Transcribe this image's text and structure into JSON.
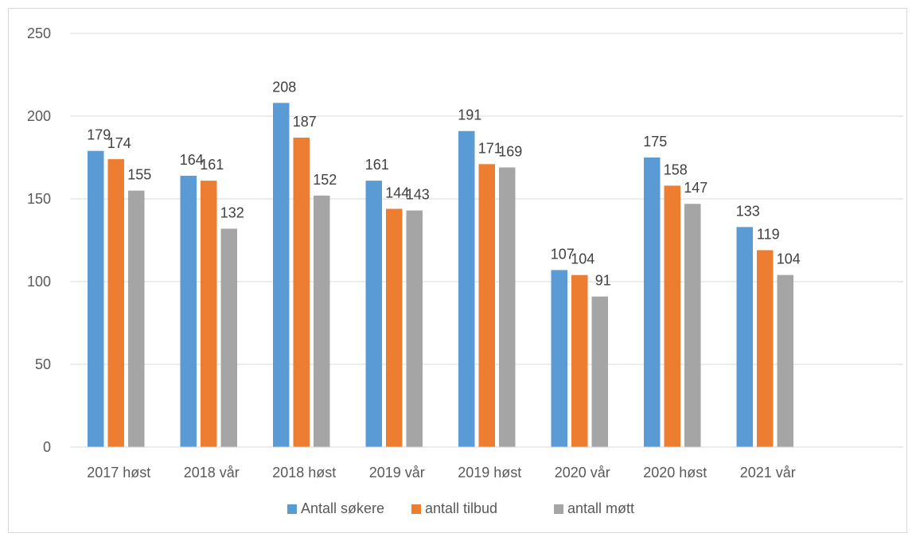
{
  "chart_data": {
    "type": "bar",
    "title": "",
    "xlabel": "",
    "ylabel": "",
    "categories": [
      "2017 høst",
      "2018 vår",
      "2018 høst",
      "2019 vår",
      "2019 høst",
      "2020 vår",
      "2020 høst",
      "2021 vår"
    ],
    "series": [
      {
        "name": "Antall søkere",
        "color": "#5b9bd5",
        "values": [
          179,
          164,
          208,
          161,
          191,
          107,
          175,
          133
        ]
      },
      {
        "name": "antall tilbud",
        "color": "#ed7d31",
        "values": [
          174,
          161,
          187,
          144,
          171,
          104,
          158,
          119
        ]
      },
      {
        "name": "antall møtt",
        "color": "#a5a5a5",
        "values": [
          155,
          132,
          152,
          143,
          169,
          91,
          147,
          104
        ]
      }
    ],
    "ylim": [
      0,
      250
    ],
    "yticks": [
      0,
      50,
      100,
      150,
      200,
      250
    ],
    "grid": true,
    "legend_position": "bottom"
  }
}
